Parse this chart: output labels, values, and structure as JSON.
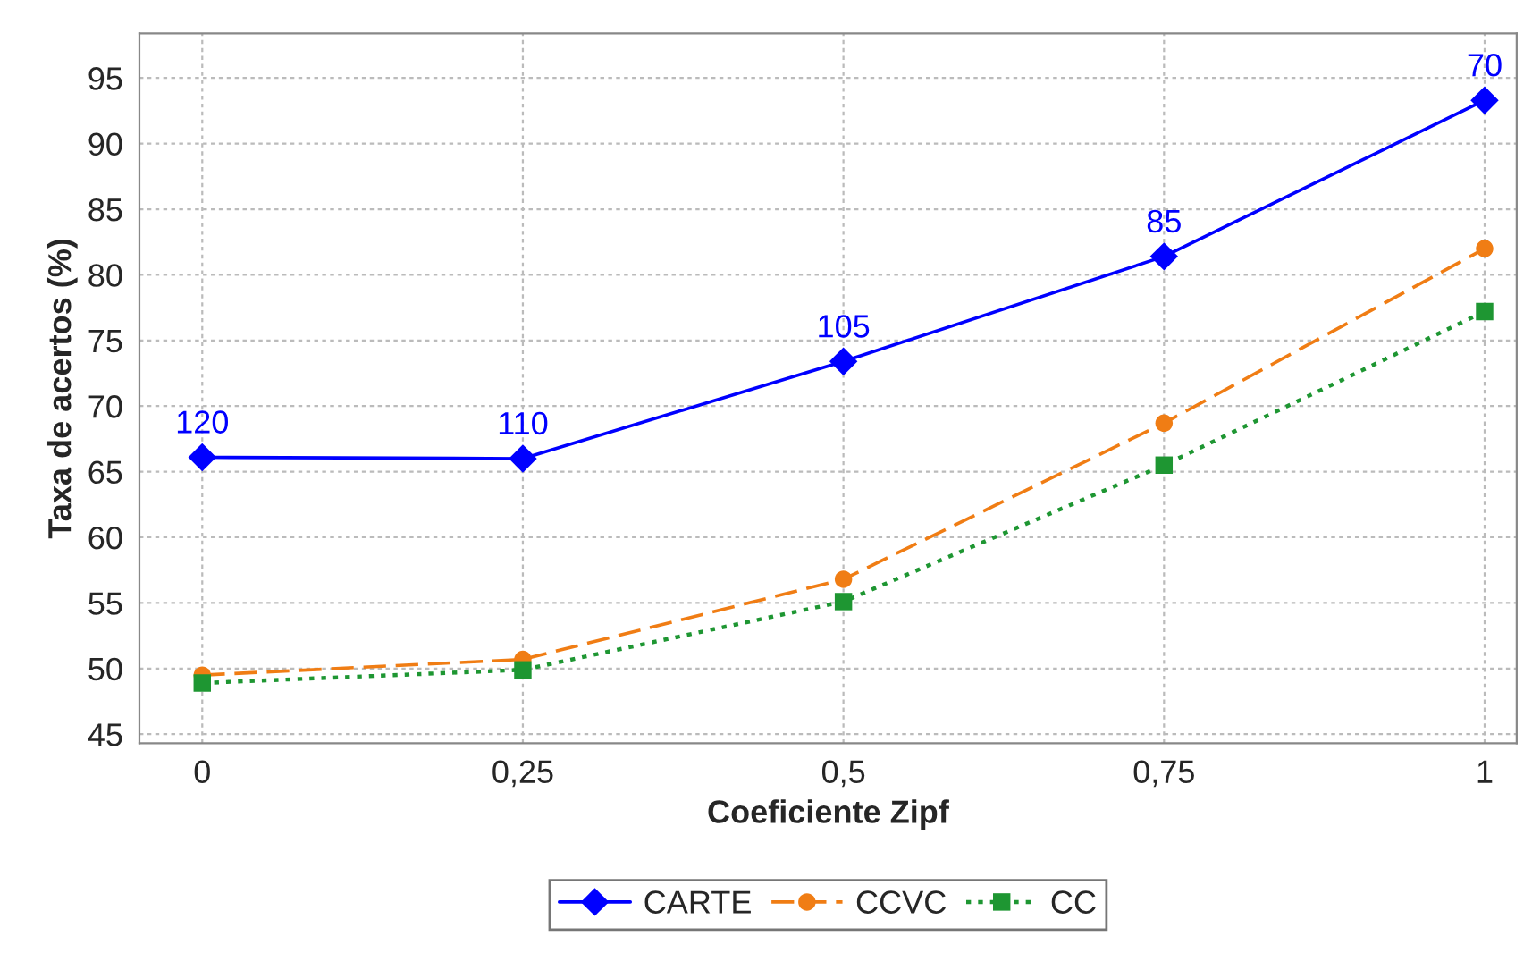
{
  "chart_data": {
    "type": "line",
    "xlabel": "Coeficiente Zipf",
    "ylabel": "Taxa de acertos (%)",
    "x": [
      0,
      0.25,
      0.5,
      0.75,
      1
    ],
    "series": [
      {
        "name": "CARTE",
        "color": "#0000ff",
        "values": [
          66.1,
          66.0,
          73.4,
          81.4,
          93.3
        ],
        "marker": "diamond",
        "line_style": "solid"
      },
      {
        "name": "CCVC",
        "color": "#f07d14",
        "values": [
          49.5,
          50.7,
          56.8,
          68.7,
          82.0
        ],
        "marker": "circle",
        "line_style": "dashed"
      },
      {
        "name": "CC",
        "color": "#1e9632",
        "values": [
          48.9,
          49.9,
          55.1,
          65.5,
          77.2
        ],
        "marker": "square",
        "line_style": "dotted"
      }
    ],
    "xlim": [
      -0.049,
      1.025
    ],
    "ylim": [
      44.3,
      98.4
    ],
    "xticks": [
      0,
      {
        "value": 0.25,
        "label": "0,25"
      },
      {
        "value": 0.5,
        "label": "0,5"
      },
      {
        "value": 0.75,
        "label": "0,75"
      },
      1
    ],
    "yticks": [
      45,
      50,
      55,
      60,
      65,
      70,
      75,
      80,
      85,
      90,
      95
    ],
    "annotations": [
      {
        "text": "120",
        "x": 0,
        "y": 66.1
      },
      {
        "text": "110",
        "x": 0.25,
        "y": 66.0
      },
      {
        "text": "105",
        "x": 0.5,
        "y": 73.4
      },
      {
        "text": "85",
        "x": 0.75,
        "y": 81.4
      },
      {
        "text": "70",
        "x": 1,
        "y": 93.3
      }
    ],
    "grid": true,
    "legend": "bottom"
  }
}
